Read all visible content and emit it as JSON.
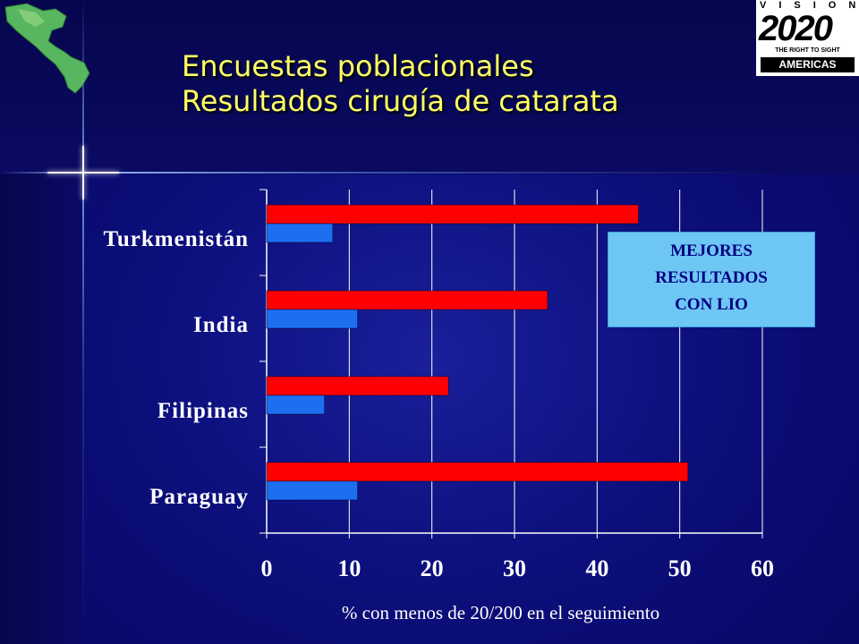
{
  "title": {
    "line1": "Encuestas poblacionales",
    "line2": "Resultados cirugía de catarata"
  },
  "logo": {
    "word": "VISION",
    "year": "2020",
    "tagline": "THE RIGHT TO SIGHT",
    "region": "AMERICAS"
  },
  "callout": {
    "line1": "MEJORES",
    "line2": "RESULTADOS",
    "line3": "CON LIO"
  },
  "colors": {
    "series_red": "#ff0000",
    "series_blue": "#1e6ef0",
    "title": "#ffff66",
    "callout_bg": "#6ec6f5",
    "background": "#0c0f7c"
  },
  "chart_data": {
    "type": "bar",
    "orientation": "horizontal",
    "categories": [
      "Turkmenistán",
      "India",
      "Filipinas",
      "Paraguay"
    ],
    "series": [
      {
        "values": [
          45,
          34,
          22,
          51
        ]
      },
      {
        "values": [
          8,
          11,
          7,
          11
        ]
      }
    ],
    "xlabel": "% con menos de 20/200 en el seguimiento",
    "xlim": [
      0,
      60
    ],
    "xticks": [
      "0",
      "10",
      "20",
      "30",
      "40",
      "50",
      "60"
    ],
    "grid": "vertical"
  }
}
